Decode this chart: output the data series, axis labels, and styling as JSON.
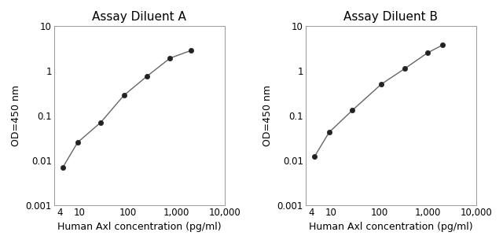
{
  "panel_A": {
    "title": "Assay Diluent A",
    "x": [
      4.6,
      9.25,
      27.8,
      83.3,
      250,
      750,
      2000
    ],
    "y": [
      0.007,
      0.025,
      0.07,
      0.28,
      0.75,
      1.9,
      2.8
    ]
  },
  "panel_B": {
    "title": "Assay Diluent B",
    "x": [
      4.6,
      9.25,
      27.8,
      111,
      333,
      1000,
      2000
    ],
    "y": [
      0.012,
      0.042,
      0.13,
      0.5,
      1.1,
      2.5,
      3.7
    ]
  },
  "xlabel": "Human Axl concentration (pg/ml)",
  "ylabel": "OD=450 nm",
  "xlim_min": 3,
  "xlim_max": 10000,
  "ylim_min": 0.001,
  "ylim_max": 10,
  "xticks": [
    4,
    10,
    100,
    1000,
    10000
  ],
  "xtick_labels": [
    "4",
    "10",
    "100",
    "1,000",
    "10,000"
  ],
  "yticks": [
    0.001,
    0.01,
    0.1,
    1,
    10
  ],
  "ytick_labels": [
    "0.001",
    "0.01",
    "0.1",
    "1",
    "10"
  ],
  "line_color": "#666666",
  "marker_color": "#222222",
  "bg_color": "#ffffff",
  "title_fontsize": 11,
  "label_fontsize": 9,
  "tick_fontsize": 8.5,
  "fig_width": 6.4,
  "fig_height": 3.09,
  "dpi": 100
}
